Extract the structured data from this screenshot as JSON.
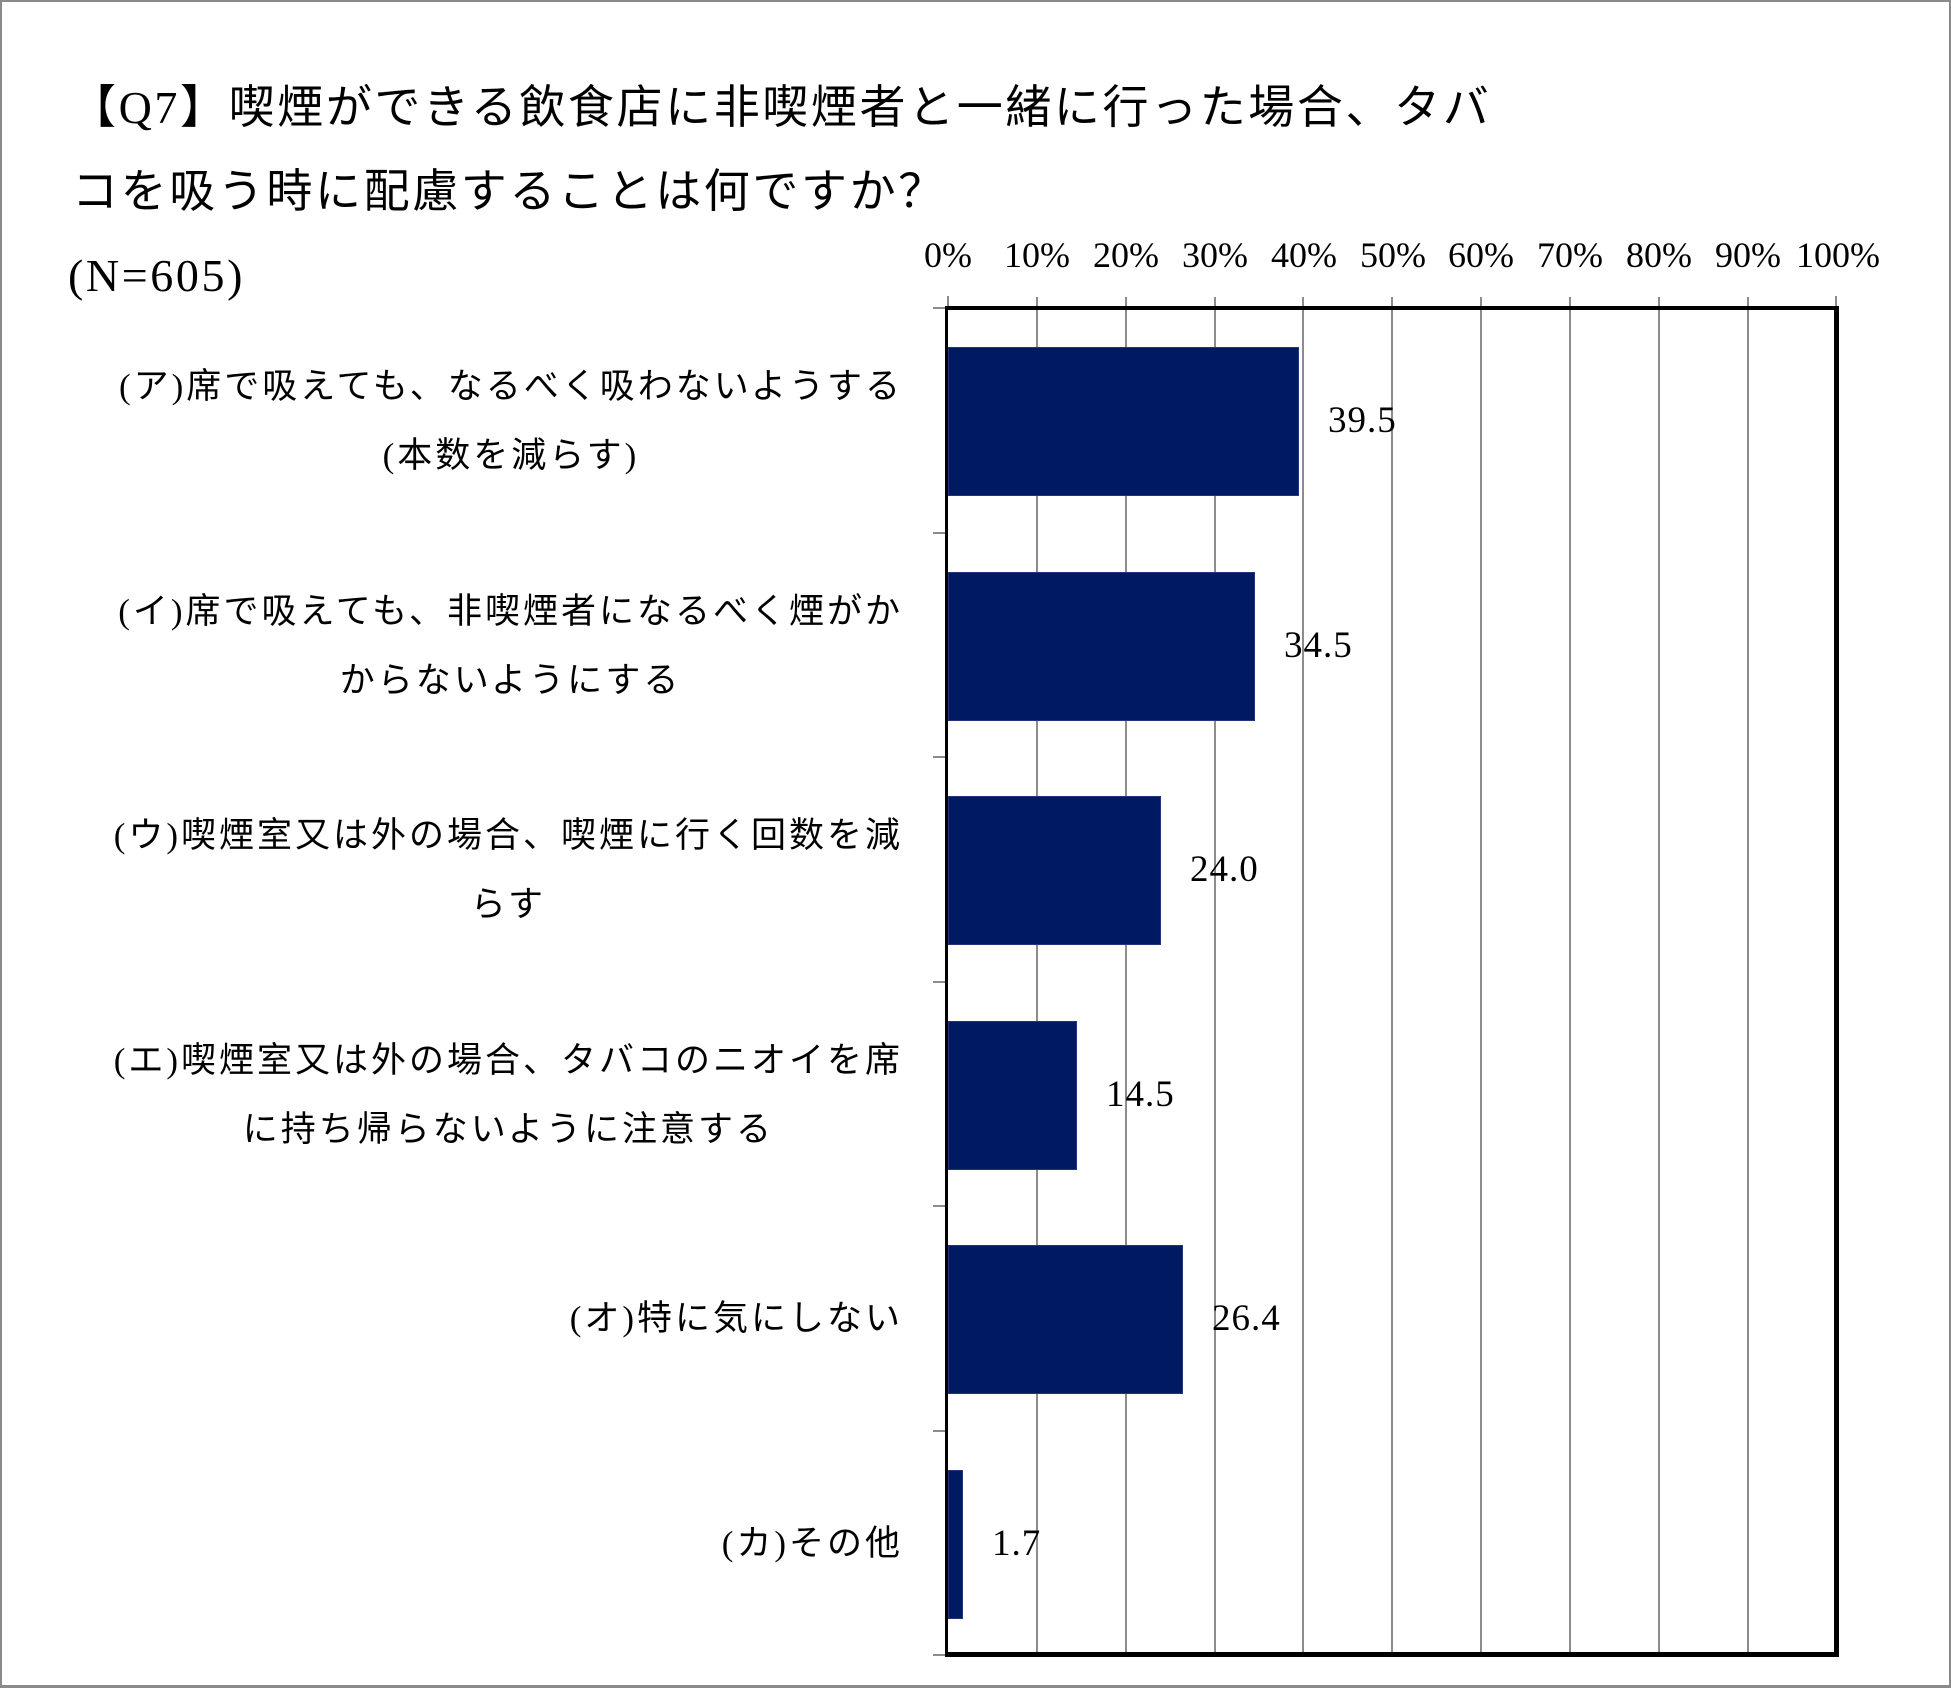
{
  "title": {
    "line1": "【Q7】喫煙ができる飲食店に非喫煙者と一緒に行った場合、タバ",
    "line2": "コを吸う時に配慮することは何ですか？",
    "line3": "(N=605)"
  },
  "axis": {
    "ticks": [
      "0%",
      "10%",
      "20%",
      "30%",
      "40%",
      "50%",
      "60%",
      "70%",
      "80%",
      "90%",
      "100%"
    ]
  },
  "categories": [
    {
      "line1": "(ア)席で吸えても、なるべく吸わないようする",
      "line2": "(本数を減らす)",
      "value": 39.5,
      "value_label": "39.5"
    },
    {
      "line1": "(イ)席で吸えても、非喫煙者になるべく煙がか",
      "line2": "からないようにする",
      "value": 34.5,
      "value_label": "34.5"
    },
    {
      "line1": "(ウ)喫煙室又は外の場合、喫煙に行く回数を減",
      "line2": "らす",
      "value": 24.0,
      "value_label": "24.0"
    },
    {
      "line1": "(エ)喫煙室又は外の場合、タバコのニオイを席",
      "line2": "に持ち帰らないように注意する",
      "value": 14.5,
      "value_label": "14.5"
    },
    {
      "line1": "(オ)特に気にしない",
      "line2": "",
      "value": 26.4,
      "value_label": "26.4"
    },
    {
      "line1": "(カ)その他",
      "line2": "",
      "value": 1.7,
      "value_label": "1.7"
    }
  ],
  "colors": {
    "bar": "#001a62",
    "gridline": "#8c8c8c",
    "frame": "#8a8a8a"
  },
  "chart_data": {
    "type": "bar",
    "orientation": "horizontal",
    "title": "【Q7】喫煙ができる飲食店に非喫煙者と一緒に行った場合、タバコを吸う時に配慮することは何ですか？ (N=605)",
    "categories": [
      "(ア)席で吸えても、なるべく吸わないようする(本数を減らす)",
      "(イ)席で吸えても、非喫煙者になるべく煙がかからないようにする",
      "(ウ)喫煙室又は外の場合、喫煙に行く回数を減らす",
      "(エ)喫煙室又は外の場合、タバコのニオイを席に持ち帰らないように注意する",
      "(オ)特に気にしない",
      "(カ)その他"
    ],
    "values": [
      39.5,
      34.5,
      24.0,
      14.5,
      26.4,
      1.7
    ],
    "xlabel": "",
    "ylabel": "",
    "xlim": [
      0,
      100
    ],
    "x_ticks": [
      "0%",
      "10%",
      "20%",
      "30%",
      "40%",
      "50%",
      "60%",
      "70%",
      "80%",
      "90%",
      "100%"
    ],
    "x_axis_position": "top",
    "grid": true,
    "legend": null,
    "data_labels": true
  }
}
